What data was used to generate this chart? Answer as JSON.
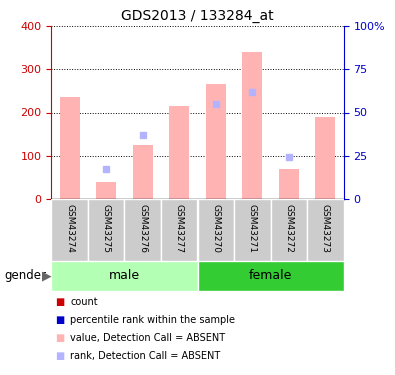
{
  "title": "GDS2013 / 133284_at",
  "samples": [
    "GSM43274",
    "GSM43275",
    "GSM43276",
    "GSM43277",
    "GSM43270",
    "GSM43271",
    "GSM43272",
    "GSM43273"
  ],
  "bar_values": [
    235,
    40,
    125,
    215,
    265,
    340,
    68,
    190
  ],
  "rank_dots_right": [
    null,
    17,
    37,
    null,
    55,
    62,
    24,
    null
  ],
  "left_ylim": [
    0,
    400
  ],
  "right_ylim": [
    0,
    100
  ],
  "left_yticks": [
    0,
    100,
    200,
    300,
    400
  ],
  "right_yticks": [
    0,
    25,
    50,
    75,
    100
  ],
  "right_yticklabels": [
    "0",
    "25",
    "50",
    "75",
    "100%"
  ],
  "bar_color_absent": "#ffb3b3",
  "rank_color_absent": "#b3b3ff",
  "count_color": "#cc0000",
  "rank_color": "#0000cc",
  "group_male_color": "#b3ffb3",
  "group_female_color": "#33cc33",
  "sample_bg_color": "#cccccc",
  "legend_items": [
    {
      "label": "count",
      "color": "#cc0000"
    },
    {
      "label": "percentile rank within the sample",
      "color": "#0000cc"
    },
    {
      "label": "value, Detection Call = ABSENT",
      "color": "#ffb3b3"
    },
    {
      "label": "rank, Detection Call = ABSENT",
      "color": "#b3b3ff"
    }
  ],
  "gender_label": "gender"
}
